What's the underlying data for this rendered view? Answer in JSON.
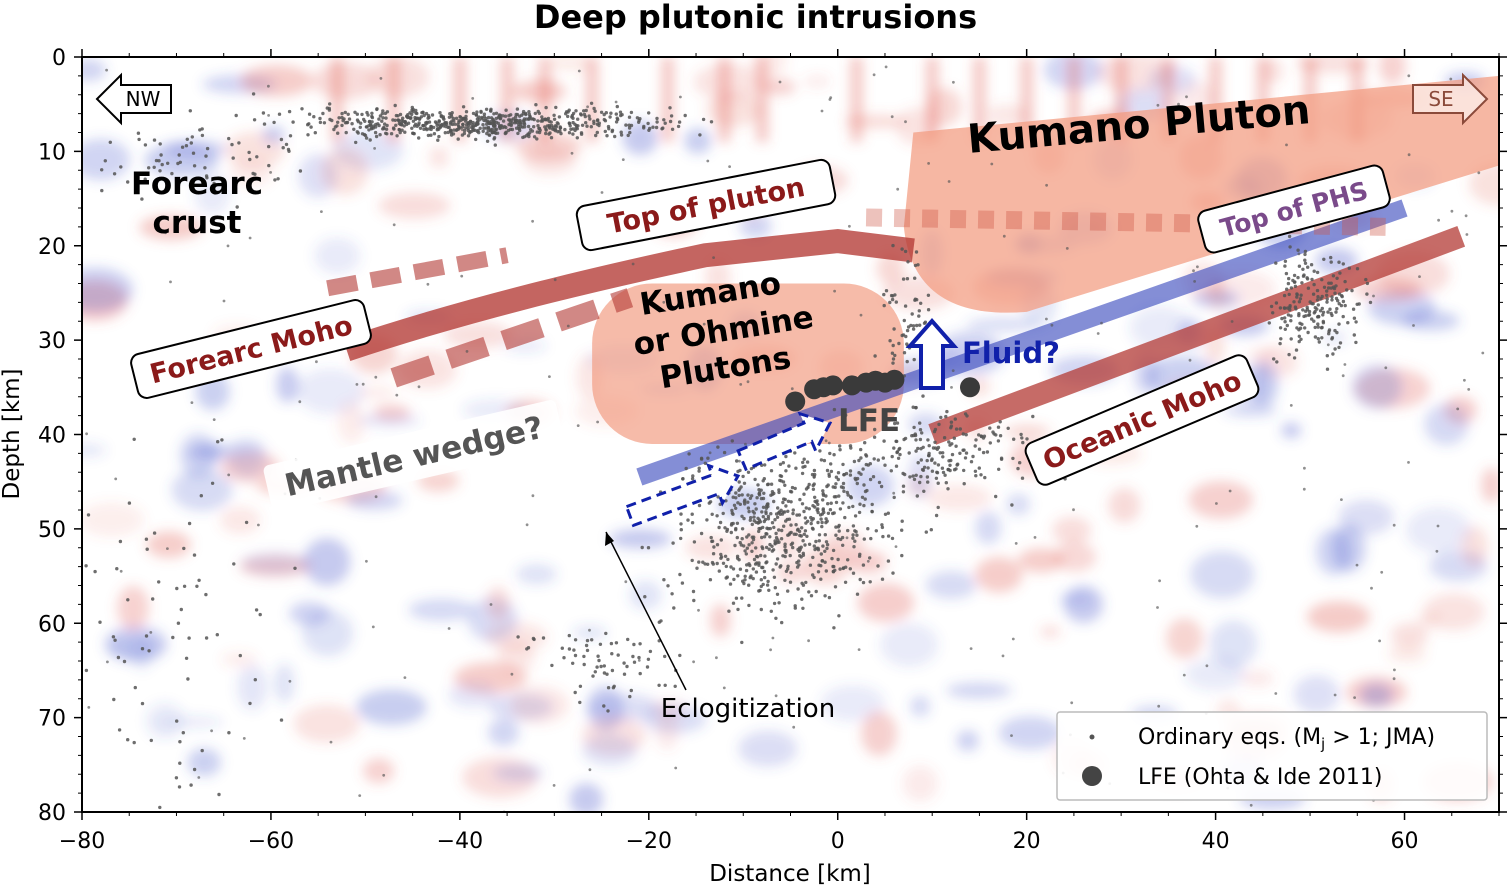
{
  "chart_data": {
    "type": "scatter",
    "title": "Deep plutonic intrusions",
    "xlabel": "Distance [km]",
    "ylabel": "Depth [km]",
    "xlim": [
      -80,
      70
    ],
    "ylim": [
      80,
      0
    ],
    "x_ticks": [
      -80,
      -60,
      -40,
      -20,
      0,
      20,
      40,
      60
    ],
    "x_tick_labels": [
      "−80",
      "−60",
      "−40",
      "−20",
      "0",
      "20",
      "40",
      "60"
    ],
    "y_ticks": [
      0,
      10,
      20,
      30,
      40,
      50,
      60,
      70,
      80
    ],
    "y_tick_labels": [
      "0",
      "10",
      "20",
      "30",
      "40",
      "50",
      "60",
      "70",
      "80"
    ],
    "grid": false,
    "legend_position": "bottom-right",
    "legend": [
      {
        "label": "Ordinary eqs. (M",
        "sub": "j",
        "label_suffix": " > 1; JMA)",
        "marker": "small-dot",
        "color": "#555555"
      },
      {
        "label": "LFE (Ohta & Ide 2011)",
        "marker": "large-dot",
        "color": "#444444"
      }
    ],
    "series": [
      {
        "name": "LFE (Ohta & Ide 2011)",
        "points": [
          [
            -4.5,
            36.5
          ],
          [
            -2.5,
            35.2
          ],
          [
            -1.5,
            35.0
          ],
          [
            -0.5,
            34.8
          ],
          [
            1.5,
            34.8
          ],
          [
            3.0,
            34.5
          ],
          [
            4.0,
            34.3
          ],
          [
            5.0,
            34.5
          ],
          [
            6.0,
            34.2
          ],
          [
            14.0,
            35.0
          ]
        ]
      },
      {
        "name": "Ordinary eqs. (Mj > 1; JMA)",
        "clusters": [
          {
            "x": [
              -55,
              -20
            ],
            "y": [
              5.5,
              8.5
            ],
            "density": "high"
          },
          {
            "x": [
              -17,
              5
            ],
            "y": [
              42,
              58
            ],
            "density": "high"
          },
          {
            "x": [
              -32,
              -17
            ],
            "y": [
              60,
              68
            ],
            "density": "low"
          },
          {
            "x": [
              0,
              20
            ],
            "y": [
              38,
              46
            ],
            "density": "medium"
          },
          {
            "x": [
              5,
              10
            ],
            "y": [
              20,
              38
            ],
            "density": "low"
          },
          {
            "x": [
              46,
              55
            ],
            "y": [
              21,
              32
            ],
            "density": "medium"
          },
          {
            "x": [
              -80,
              -55
            ],
            "y": [
              6,
              15
            ],
            "density": "low"
          },
          {
            "x": [
              -78,
              -60
            ],
            "y": [
              45,
              80
            ],
            "density": "low"
          }
        ]
      }
    ],
    "annotations": {
      "nw": "NW",
      "se": "SE",
      "forearc_crust": [
        "Forearc",
        "crust"
      ],
      "kumano_pluton": "Kumano Pluton",
      "top_of_pluton": "Top of pluton",
      "top_of_phs": "Top of PHS",
      "forearc_moho": "Forearc Moho",
      "kumano_ohmine": [
        "Kumano",
        "or Ohmine",
        "Plutons"
      ],
      "fluid": "Fluid?",
      "lfe": "LFE",
      "oceanic_moho": "Oceanic Moho",
      "mantle_wedge": "Mantle wedge?",
      "eclogitization": "Eclogitization"
    },
    "colors": {
      "pluton": "#f29b80",
      "dark_red": "#8b1a1a",
      "moho_band": "#b33a35",
      "phs_band": "#3344bb",
      "fluid_blue": "#1020aa",
      "quake": "#555555",
      "lfe": "#3a3a3a",
      "positive_anomaly": "#e05a50",
      "negative_anomaly": "#4455cc"
    }
  }
}
